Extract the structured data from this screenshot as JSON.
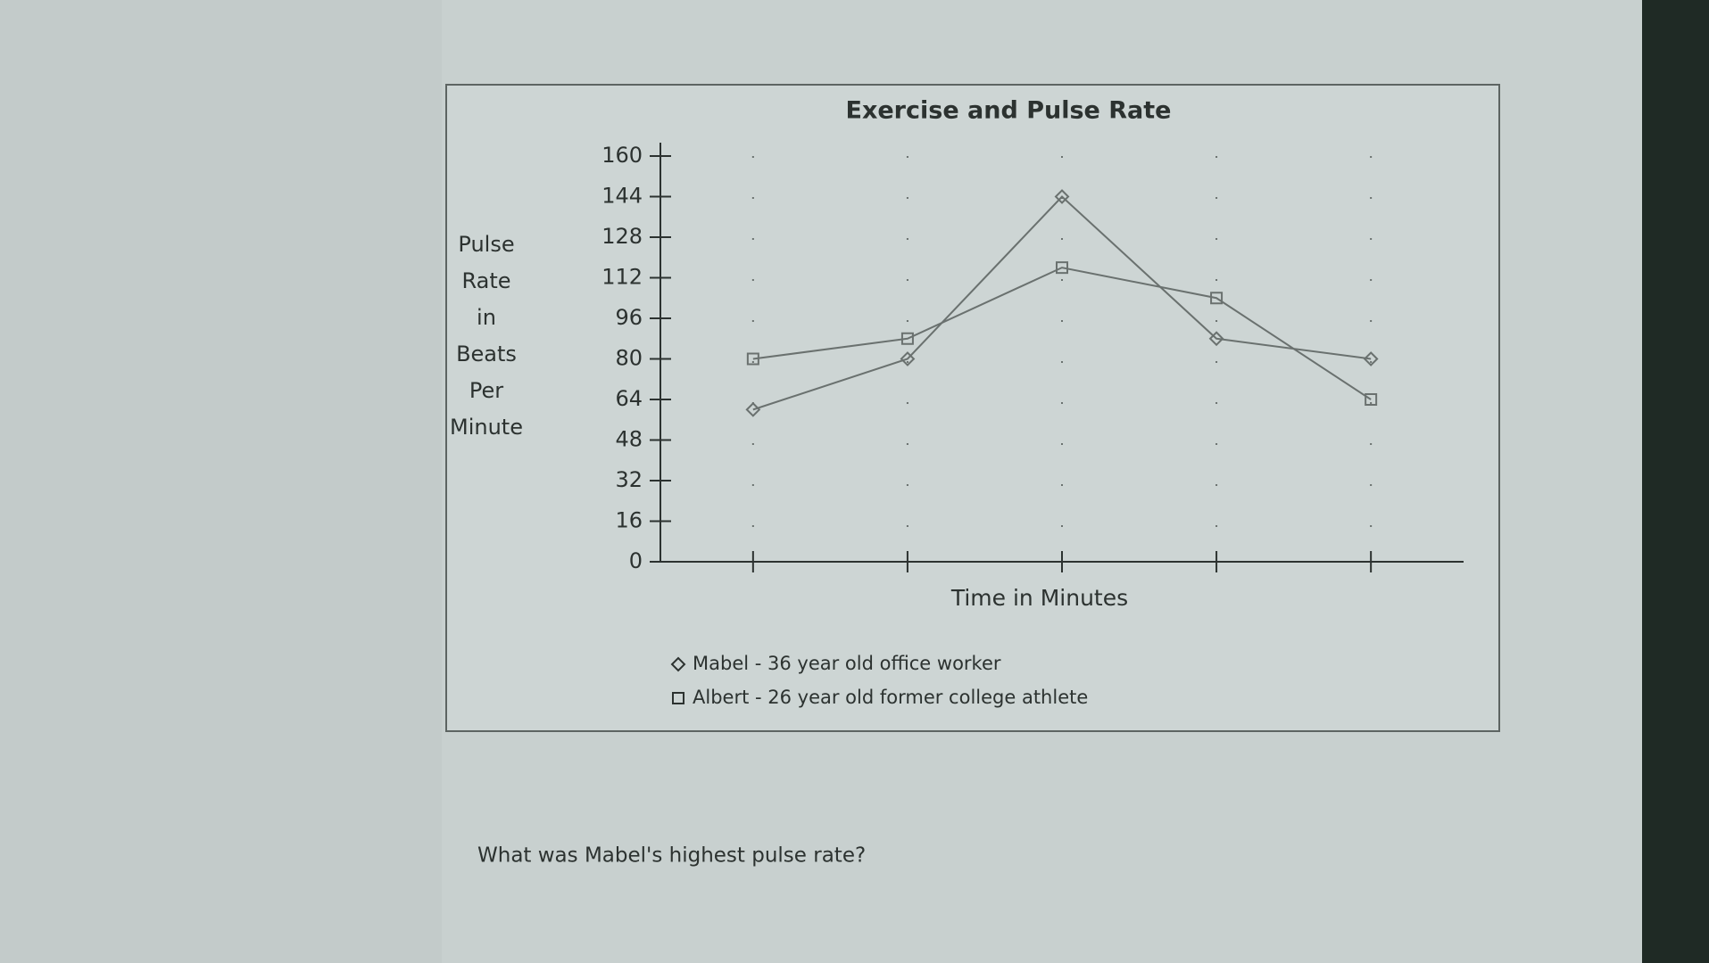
{
  "chart_data": {
    "type": "line",
    "title": "Exercise and Pulse Rate",
    "xlabel": "Time in Minutes",
    "ylabel": "Pulse Rate in Beats Per Minute",
    "categories": [
      null,
      null,
      null,
      null,
      null
    ],
    "series": [
      {
        "name": "Mabel - 36 year old office worker",
        "color": "#6a716f",
        "marker": "diamond",
        "values": [
          60,
          80,
          144,
          88,
          80
        ]
      },
      {
        "name": "Albert - 26 year old former college athlete",
        "color": "#6a716f",
        "marker": "square",
        "values": [
          80,
          88,
          116,
          104,
          64
        ]
      }
    ],
    "ylim": [
      0,
      160
    ],
    "yticks": [
      0,
      16,
      32,
      48,
      64,
      80,
      96,
      112,
      128,
      144,
      160
    ],
    "grid": true,
    "legend": "bottom-left"
  },
  "question": "What was Mabel's highest pulse rate?"
}
